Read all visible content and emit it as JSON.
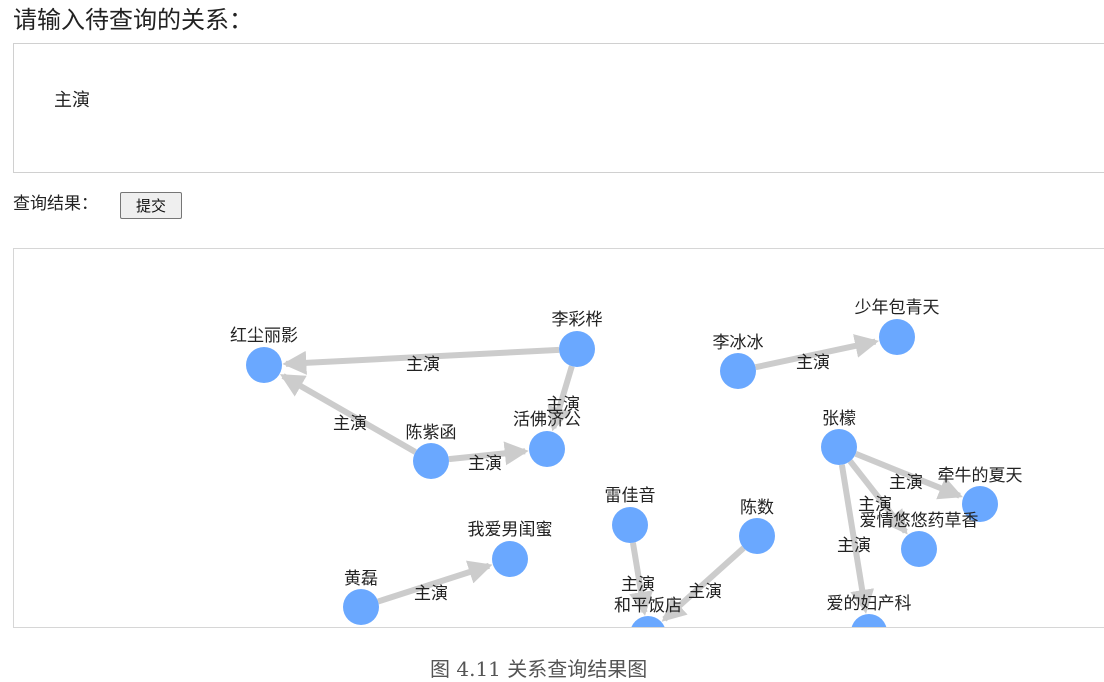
{
  "prompt": {
    "label": "请输入待查询的关系："
  },
  "relation_input": {
    "value": "主演"
  },
  "result": {
    "label": "查询结果：",
    "submit_label": "提交"
  },
  "graph": {
    "node_color": "#6aa8ff",
    "edge_color": "#cccccc",
    "nodes": [
      {
        "id": "hongchen",
        "label": "红尘丽影"
      },
      {
        "id": "licaihua",
        "label": "李彩桦"
      },
      {
        "id": "chenzihan",
        "label": "陈紫函"
      },
      {
        "id": "huofo",
        "label": "活佛济公"
      },
      {
        "id": "libingbing",
        "label": "李冰冰"
      },
      {
        "id": "shaonian",
        "label": "少年包青天"
      },
      {
        "id": "zhangmeng",
        "label": "张檬"
      },
      {
        "id": "qianniu",
        "label": "牵牛的夏天"
      },
      {
        "id": "aiqing",
        "label": "爱情悠悠药草香"
      },
      {
        "id": "fuchanke",
        "label": "爱的妇产科"
      },
      {
        "id": "leijiayin",
        "label": "雷佳音"
      },
      {
        "id": "chenshu",
        "label": "陈数"
      },
      {
        "id": "heping",
        "label": "和平饭店"
      },
      {
        "id": "huanglei",
        "label": "黄磊"
      },
      {
        "id": "woai",
        "label": "我爱男闺蜜"
      }
    ],
    "edges": [
      {
        "source": "licaihua",
        "target": "hongchen",
        "label": "主演"
      },
      {
        "source": "chenzihan",
        "target": "hongchen",
        "label": "主演"
      },
      {
        "source": "chenzihan",
        "target": "huofo",
        "label": "主演"
      },
      {
        "source": "licaihua",
        "target": "huofo",
        "label": "主演"
      },
      {
        "source": "libingbing",
        "target": "shaonian",
        "label": "主演"
      },
      {
        "source": "zhangmeng",
        "target": "qianniu",
        "label": "主演"
      },
      {
        "source": "zhangmeng",
        "target": "aiqing",
        "label": "主演"
      },
      {
        "source": "zhangmeng",
        "target": "fuchanke",
        "label": "主演"
      },
      {
        "source": "leijiayin",
        "target": "heping",
        "label": "主演"
      },
      {
        "source": "chenshu",
        "target": "heping",
        "label": "主演"
      },
      {
        "source": "huanglei",
        "target": "woai",
        "label": "主演"
      }
    ]
  },
  "caption": "图 4.11 关系查询结果图"
}
